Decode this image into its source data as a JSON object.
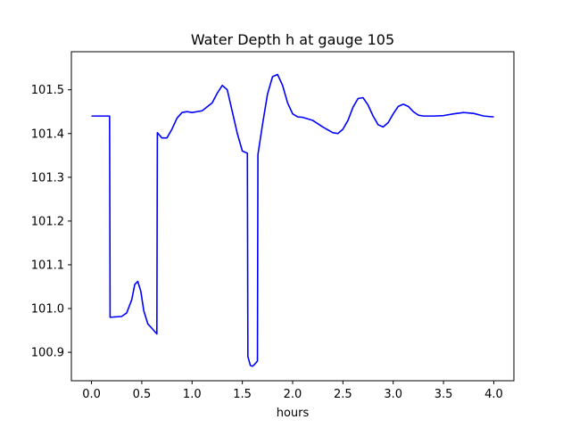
{
  "chart_data": {
    "type": "line",
    "title": "Water Depth h at gauge 105",
    "xlabel": "hours",
    "ylabel": "",
    "xlim": [
      -0.2,
      4.2
    ],
    "ylim": [
      100.835,
      101.587
    ],
    "xticks": [
      0.0,
      0.5,
      1.0,
      1.5,
      2.0,
      2.5,
      3.0,
      3.5,
      4.0
    ],
    "xtick_labels": [
      "0.0",
      "0.5",
      "1.0",
      "1.5",
      "2.0",
      "2.5",
      "3.0",
      "3.5",
      "4.0"
    ],
    "yticks": [
      100.9,
      101.0,
      101.1,
      101.2,
      101.3,
      101.4,
      101.5
    ],
    "ytick_labels": [
      "100.9",
      "101.0",
      "101.1",
      "101.2",
      "101.3",
      "101.4",
      "101.5"
    ],
    "grid": false,
    "legend": "none",
    "series": [
      {
        "color": "#0000ff",
        "x": [
          0.0,
          0.18,
          0.185,
          0.3,
          0.35,
          0.4,
          0.43,
          0.46,
          0.49,
          0.52,
          0.56,
          0.6,
          0.65,
          0.655,
          0.7,
          0.75,
          0.8,
          0.85,
          0.9,
          0.95,
          1.0,
          1.1,
          1.2,
          1.25,
          1.3,
          1.35,
          1.4,
          1.45,
          1.5,
          1.55,
          1.555,
          1.58,
          1.6,
          1.62,
          1.65,
          1.655,
          1.7,
          1.75,
          1.8,
          1.85,
          1.9,
          1.95,
          2.0,
          2.05,
          2.1,
          2.2,
          2.3,
          2.4,
          2.45,
          2.5,
          2.55,
          2.6,
          2.65,
          2.7,
          2.75,
          2.8,
          2.85,
          2.9,
          2.95,
          3.0,
          3.05,
          3.1,
          3.15,
          3.2,
          3.25,
          3.3,
          3.35,
          3.4,
          3.5,
          3.6,
          3.7,
          3.8,
          3.9,
          4.0
        ],
        "y": [
          101.44,
          101.44,
          100.98,
          100.982,
          100.99,
          101.02,
          101.055,
          101.062,
          101.04,
          100.995,
          100.965,
          100.955,
          100.942,
          101.402,
          101.39,
          101.39,
          101.41,
          101.435,
          101.448,
          101.45,
          101.448,
          101.452,
          101.47,
          101.492,
          101.51,
          101.5,
          101.45,
          101.4,
          101.36,
          101.355,
          100.89,
          100.87,
          100.868,
          100.872,
          100.88,
          101.352,
          101.42,
          101.49,
          101.53,
          101.535,
          101.51,
          101.47,
          101.445,
          101.438,
          101.437,
          101.43,
          101.415,
          101.402,
          101.4,
          101.41,
          101.43,
          101.46,
          101.48,
          101.482,
          101.465,
          101.44,
          101.42,
          101.415,
          101.425,
          101.445,
          101.462,
          101.467,
          101.462,
          101.45,
          101.442,
          101.44,
          101.44,
          101.44,
          101.441,
          101.445,
          101.448,
          101.446,
          101.44,
          101.438
        ]
      }
    ]
  }
}
